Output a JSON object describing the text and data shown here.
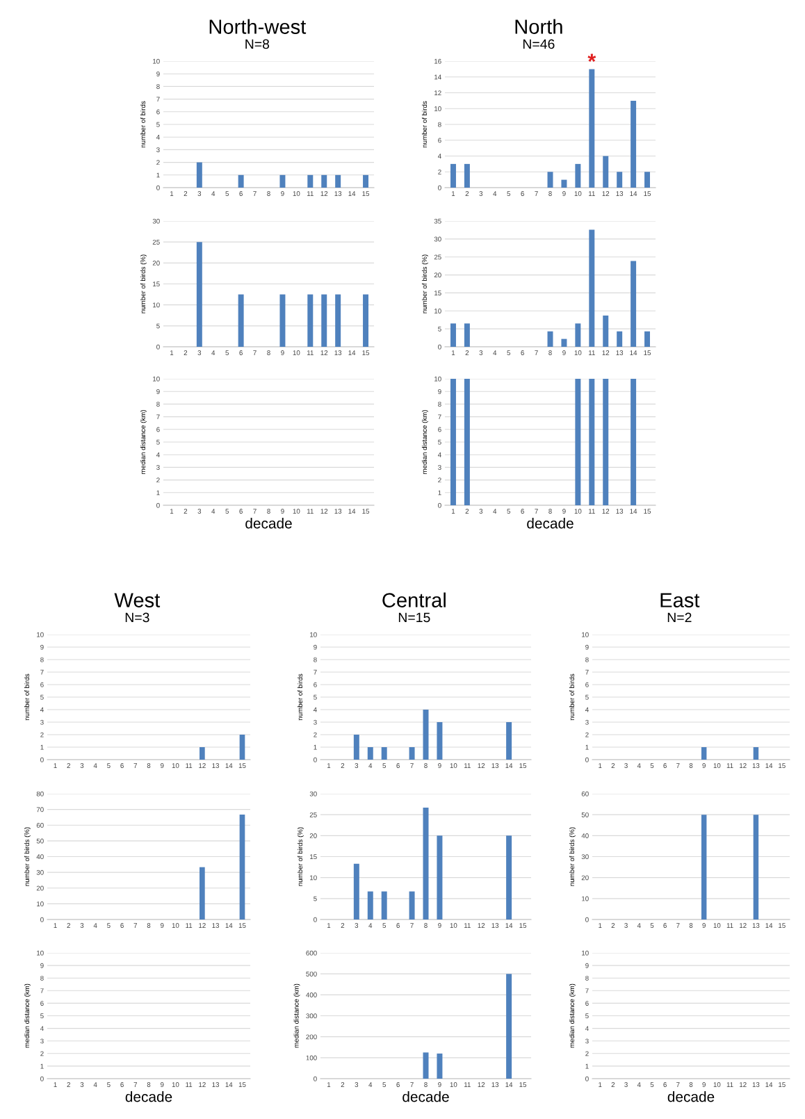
{
  "chart_data": [
    {
      "type": "bar",
      "title": "North-west",
      "subtitle": "N=8",
      "ylabel": "number of birds",
      "categories": [
        "1",
        "2",
        "3",
        "4",
        "5",
        "6",
        "7",
        "8",
        "9",
        "10",
        "11",
        "12",
        "13",
        "14",
        "15"
      ],
      "values": [
        null,
        null,
        2,
        null,
        null,
        1,
        null,
        null,
        1,
        null,
        1,
        1,
        1,
        null,
        1
      ],
      "color": "#4f81bd",
      "ylim": [
        0,
        10
      ],
      "yticks": [
        0,
        1,
        2,
        3,
        4,
        5,
        6,
        7,
        8,
        9,
        10
      ],
      "grid": "y"
    },
    {
      "type": "bar",
      "title": "North",
      "subtitle": "N=46",
      "ylabel": "number of birds",
      "categories": [
        "1",
        "2",
        "3",
        "4",
        "5",
        "6",
        "7",
        "8",
        "9",
        "10",
        "11",
        "12",
        "13",
        "14",
        "15"
      ],
      "values": [
        3,
        3,
        null,
        null,
        null,
        null,
        null,
        2,
        1,
        3,
        15,
        4,
        2,
        11,
        2
      ],
      "color": "#4f81bd",
      "ylim": [
        0,
        16
      ],
      "yticks": [
        0,
        2,
        4,
        6,
        8,
        10,
        12,
        14,
        16
      ],
      "grid": "y",
      "annotations": [
        {
          "text": "*",
          "x": "11",
          "y": 15
        }
      ]
    },
    {
      "type": "bar",
      "ylabel": "number of birds (%)",
      "categories": [
        "1",
        "2",
        "3",
        "4",
        "5",
        "6",
        "7",
        "8",
        "9",
        "10",
        "11",
        "12",
        "13",
        "14",
        "15"
      ],
      "values": [
        null,
        null,
        25,
        null,
        null,
        12.5,
        null,
        null,
        12.5,
        null,
        12.5,
        12.5,
        12.5,
        null,
        12.5
      ],
      "color": "#4f81bd",
      "ylim": [
        0,
        30
      ],
      "yticks": [
        0,
        5,
        10,
        15,
        20,
        25,
        30
      ],
      "grid": "y"
    },
    {
      "type": "bar",
      "ylabel": "number of birds (%)",
      "categories": [
        "1",
        "2",
        "3",
        "4",
        "5",
        "6",
        "7",
        "8",
        "9",
        "10",
        "11",
        "12",
        "13",
        "14",
        "15"
      ],
      "values": [
        6.5,
        6.5,
        null,
        null,
        null,
        null,
        null,
        4.3,
        2.2,
        6.5,
        32.6,
        8.7,
        4.3,
        23.9,
        4.3
      ],
      "color": "#4f81bd",
      "ylim": [
        0,
        35
      ],
      "yticks": [
        0,
        5,
        10,
        15,
        20,
        25,
        30,
        35
      ],
      "grid": "y"
    },
    {
      "type": "bar",
      "xlabel": "decade",
      "ylabel": "median distance (km)",
      "categories": [
        "1",
        "2",
        "3",
        "4",
        "5",
        "6",
        "7",
        "8",
        "9",
        "10",
        "11",
        "12",
        "13",
        "14",
        "15"
      ],
      "values": [
        null,
        null,
        null,
        null,
        null,
        null,
        null,
        null,
        null,
        null,
        null,
        null,
        null,
        null,
        null
      ],
      "color": "#4f81bd",
      "ylim": [
        0,
        10
      ],
      "yticks": [
        0,
        1,
        2,
        3,
        4,
        5,
        6,
        7,
        8,
        9,
        10
      ],
      "grid": "y"
    },
    {
      "type": "bar",
      "xlabel": "decade",
      "ylabel": "median distance (km)",
      "categories": [
        "1",
        "2",
        "3",
        "4",
        "5",
        "6",
        "7",
        "8",
        "9",
        "10",
        "11",
        "12",
        "13",
        "14",
        "15"
      ],
      "values": [
        10,
        10,
        null,
        null,
        null,
        null,
        null,
        null,
        null,
        10,
        10,
        10,
        null,
        10,
        null
      ],
      "color": "#4f81bd",
      "ylim": [
        0,
        10
      ],
      "yticks": [
        0,
        1,
        2,
        3,
        4,
        5,
        6,
        7,
        8,
        9,
        10
      ],
      "grid": "y"
    },
    {
      "type": "bar",
      "title": "West",
      "subtitle": "N=3",
      "ylabel": "number of birds",
      "categories": [
        "1",
        "2",
        "3",
        "4",
        "5",
        "6",
        "7",
        "8",
        "9",
        "10",
        "11",
        "12",
        "13",
        "14",
        "15"
      ],
      "values": [
        null,
        null,
        null,
        null,
        null,
        null,
        null,
        null,
        null,
        null,
        null,
        1,
        null,
        null,
        2
      ],
      "color": "#4f81bd",
      "ylim": [
        0,
        10
      ],
      "yticks": [
        0,
        1,
        2,
        3,
        4,
        5,
        6,
        7,
        8,
        9,
        10
      ],
      "grid": "y"
    },
    {
      "type": "bar",
      "title": "Central",
      "subtitle": "N=15",
      "ylabel": "number of birds",
      "categories": [
        "1",
        "2",
        "3",
        "4",
        "5",
        "6",
        "7",
        "8",
        "9",
        "10",
        "11",
        "12",
        "13",
        "14",
        "15"
      ],
      "values": [
        null,
        null,
        2,
        1,
        1,
        null,
        1,
        4,
        3,
        null,
        null,
        null,
        null,
        3,
        null
      ],
      "color": "#4f81bd",
      "ylim": [
        0,
        10
      ],
      "yticks": [
        0,
        1,
        2,
        3,
        4,
        5,
        6,
        7,
        8,
        9,
        10
      ],
      "grid": "y"
    },
    {
      "type": "bar",
      "title": "East",
      "subtitle": "N=2",
      "ylabel": "number of birds",
      "categories": [
        "1",
        "2",
        "3",
        "4",
        "5",
        "6",
        "7",
        "8",
        "9",
        "10",
        "11",
        "12",
        "13",
        "14",
        "15"
      ],
      "values": [
        null,
        null,
        null,
        null,
        null,
        null,
        null,
        null,
        1,
        null,
        null,
        null,
        1,
        null,
        null
      ],
      "color": "#4f81bd",
      "ylim": [
        0,
        10
      ],
      "yticks": [
        0,
        1,
        2,
        3,
        4,
        5,
        6,
        7,
        8,
        9,
        10
      ],
      "grid": "y"
    },
    {
      "type": "bar",
      "ylabel": "number of birds (%)",
      "categories": [
        "1",
        "2",
        "3",
        "4",
        "5",
        "6",
        "7",
        "8",
        "9",
        "10",
        "11",
        "12",
        "13",
        "14",
        "15"
      ],
      "values": [
        null,
        null,
        null,
        null,
        null,
        null,
        null,
        null,
        null,
        null,
        null,
        33.3,
        null,
        null,
        66.7
      ],
      "color": "#4f81bd",
      "ylim": [
        0,
        80
      ],
      "yticks": [
        0,
        10,
        20,
        30,
        40,
        50,
        60,
        70,
        80
      ],
      "grid": "y"
    },
    {
      "type": "bar",
      "ylabel": "number of birds (%)",
      "categories": [
        "1",
        "2",
        "3",
        "4",
        "5",
        "6",
        "7",
        "8",
        "9",
        "10",
        "11",
        "12",
        "13",
        "14",
        "15"
      ],
      "values": [
        null,
        null,
        13.3,
        6.7,
        6.7,
        null,
        6.7,
        26.7,
        20,
        null,
        null,
        null,
        null,
        20,
        null
      ],
      "color": "#4f81bd",
      "ylim": [
        0,
        30
      ],
      "yticks": [
        0,
        5,
        10,
        15,
        20,
        25,
        30
      ],
      "grid": "y"
    },
    {
      "type": "bar",
      "ylabel": "number of birds (%)",
      "categories": [
        "1",
        "2",
        "3",
        "4",
        "5",
        "6",
        "7",
        "8",
        "9",
        "10",
        "11",
        "12",
        "13",
        "14",
        "15"
      ],
      "values": [
        null,
        null,
        null,
        null,
        null,
        null,
        null,
        null,
        50,
        null,
        null,
        null,
        50,
        null,
        null
      ],
      "color": "#4f81bd",
      "ylim": [
        0,
        60
      ],
      "yticks": [
        0,
        10,
        20,
        30,
        40,
        50,
        60
      ],
      "grid": "y"
    },
    {
      "type": "bar",
      "xlabel": "decade",
      "ylabel": "median distance (km)",
      "categories": [
        "1",
        "2",
        "3",
        "4",
        "5",
        "6",
        "7",
        "8",
        "9",
        "10",
        "11",
        "12",
        "13",
        "14",
        "15"
      ],
      "values": [
        null,
        null,
        null,
        null,
        null,
        null,
        null,
        null,
        null,
        null,
        null,
        null,
        null,
        null,
        null
      ],
      "color": "#4f81bd",
      "ylim": [
        0,
        10
      ],
      "yticks": [
        0,
        1,
        2,
        3,
        4,
        5,
        6,
        7,
        8,
        9,
        10
      ],
      "grid": "y"
    },
    {
      "type": "bar",
      "xlabel": "decade",
      "ylabel": "median distance (km)",
      "categories": [
        "1",
        "2",
        "3",
        "4",
        "5",
        "6",
        "7",
        "8",
        "9",
        "10",
        "11",
        "12",
        "13",
        "14",
        "15"
      ],
      "values": [
        null,
        null,
        null,
        null,
        null,
        null,
        null,
        125,
        120,
        null,
        null,
        null,
        null,
        500,
        null
      ],
      "color": "#4f81bd",
      "ylim": [
        0,
        600
      ],
      "yticks": [
        0,
        100,
        200,
        300,
        400,
        500,
        600
      ],
      "grid": "y"
    },
    {
      "type": "bar",
      "xlabel": "decade",
      "ylabel": "median distance (km)",
      "categories": [
        "1",
        "2",
        "3",
        "4",
        "5",
        "6",
        "7",
        "8",
        "9",
        "10",
        "11",
        "12",
        "13",
        "14",
        "15"
      ],
      "values": [
        null,
        null,
        null,
        null,
        null,
        null,
        null,
        null,
        null,
        null,
        null,
        null,
        null,
        null,
        null
      ],
      "color": "#4f81bd",
      "ylim": [
        0,
        10
      ],
      "yticks": [
        0,
        1,
        2,
        3,
        4,
        5,
        6,
        7,
        8,
        9,
        10
      ],
      "grid": "y"
    }
  ]
}
